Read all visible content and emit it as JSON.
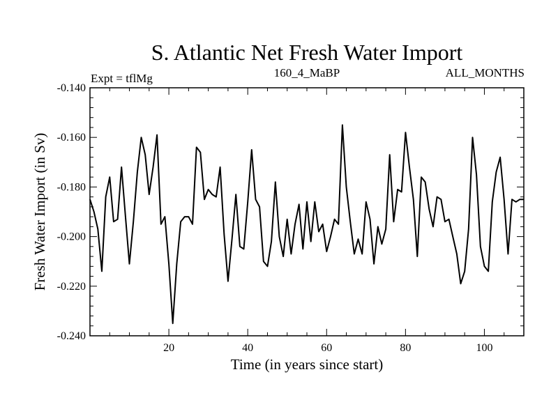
{
  "chart_data": {
    "type": "line",
    "title": "S. Atlantic Net Fresh Water Import",
    "subtitle_left": "Expt = tflMg",
    "subtitle_center": "160_4_MaBP",
    "subtitle_right": "ALL_MONTHS",
    "xlabel": "Time (in years since start)",
    "ylabel": "Fresh Water Import (in Sv)",
    "xlim": [
      0,
      110
    ],
    "ylim": [
      -0.24,
      -0.14
    ],
    "x_ticks": [
      20,
      40,
      60,
      80,
      100
    ],
    "x_tick_labels": [
      "20",
      "40",
      "60",
      "80",
      "100"
    ],
    "y_ticks": [
      -0.24,
      -0.22,
      -0.2,
      -0.18,
      -0.16,
      -0.14
    ],
    "y_tick_labels": [
      "-0.240",
      "-0.220",
      "-0.200",
      "-0.180",
      "-0.160",
      "-0.140"
    ],
    "grid": false,
    "series": [
      {
        "name": "fresh_water_import",
        "color": "#000000",
        "x": [
          0,
          1,
          2,
          3,
          4,
          5,
          6,
          7,
          8,
          9,
          10,
          11,
          12,
          13,
          14,
          15,
          16,
          17,
          18,
          19,
          20,
          21,
          22,
          23,
          24,
          25,
          26,
          27,
          28,
          29,
          30,
          31,
          32,
          33,
          34,
          35,
          36,
          37,
          38,
          39,
          40,
          41,
          42,
          43,
          44,
          45,
          46,
          47,
          48,
          49,
          50,
          51,
          52,
          53,
          54,
          55,
          56,
          57,
          58,
          59,
          60,
          61,
          62,
          63,
          64,
          65,
          66,
          67,
          68,
          69,
          70,
          71,
          72,
          73,
          74,
          75,
          76,
          77,
          78,
          79,
          80,
          81,
          82,
          83,
          84,
          85,
          86,
          87,
          88,
          89,
          90,
          91,
          92,
          93,
          94,
          95,
          96,
          97,
          98,
          99,
          100,
          101,
          102,
          103,
          104,
          105,
          106,
          107,
          108,
          109,
          110
        ],
        "values": [
          -0.185,
          -0.19,
          -0.197,
          -0.214,
          -0.184,
          -0.176,
          -0.194,
          -0.193,
          -0.172,
          -0.192,
          -0.211,
          -0.194,
          -0.174,
          -0.16,
          -0.167,
          -0.183,
          -0.172,
          -0.159,
          -0.195,
          -0.192,
          -0.211,
          -0.235,
          -0.211,
          -0.194,
          -0.192,
          -0.192,
          -0.195,
          -0.164,
          -0.166,
          -0.185,
          -0.181,
          -0.183,
          -0.184,
          -0.172,
          -0.199,
          -0.218,
          -0.201,
          -0.183,
          -0.204,
          -0.205,
          -0.186,
          -0.165,
          -0.185,
          -0.188,
          -0.21,
          -0.212,
          -0.202,
          -0.178,
          -0.2,
          -0.208,
          -0.193,
          -0.207,
          -0.195,
          -0.187,
          -0.205,
          -0.186,
          -0.202,
          -0.186,
          -0.198,
          -0.195,
          -0.206,
          -0.2,
          -0.193,
          -0.195,
          -0.155,
          -0.18,
          -0.194,
          -0.207,
          -0.201,
          -0.207,
          -0.186,
          -0.193,
          -0.211,
          -0.196,
          -0.203,
          -0.197,
          -0.167,
          -0.194,
          -0.181,
          -0.182,
          -0.158,
          -0.172,
          -0.185,
          -0.208,
          -0.176,
          -0.178,
          -0.189,
          -0.196,
          -0.184,
          -0.185,
          -0.194,
          -0.193,
          -0.2,
          -0.207,
          -0.219,
          -0.214,
          -0.197,
          -0.16,
          -0.175,
          -0.204,
          -0.212,
          -0.214,
          -0.186,
          -0.174,
          -0.168,
          -0.185,
          -0.207,
          -0.185,
          -0.186,
          -0.185,
          -0.185
        ]
      }
    ]
  }
}
